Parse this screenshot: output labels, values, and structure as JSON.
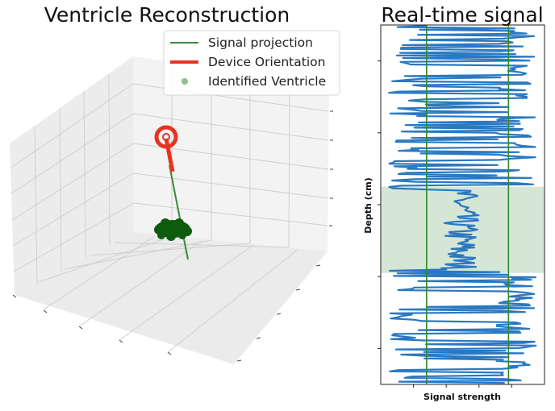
{
  "chart_data": [
    {
      "type": "scatter3d",
      "title": "Ventricle Reconstruction",
      "legend_position": "top-right",
      "legend": [
        "Signal projection",
        "Device Orientation",
        "Identified Ventricle"
      ],
      "series": [
        {
          "name": "Signal projection",
          "color": "#3a8a3a"
        },
        {
          "name": "Device Orientation",
          "color": "#e63322"
        },
        {
          "name": "Identified Ventricle",
          "color": "#0d5c0d"
        }
      ],
      "grid": true
    },
    {
      "type": "line",
      "title": "Real-time signal",
      "xlabel": "Signal strength",
      "ylabel": "Depth (cm)",
      "xlim": [
        0,
        1
      ],
      "ylim": [
        0,
        1
      ],
      "vlines_x": [
        0.28,
        0.78
      ],
      "highlight_band": {
        "from": 0.31,
        "to": 0.55,
        "color": "#d5e6d5"
      },
      "line_color": "#2a78c2",
      "outer_amplitude": [
        0.05,
        0.95
      ],
      "inner_amplitude": [
        0.37,
        0.6
      ]
    }
  ]
}
